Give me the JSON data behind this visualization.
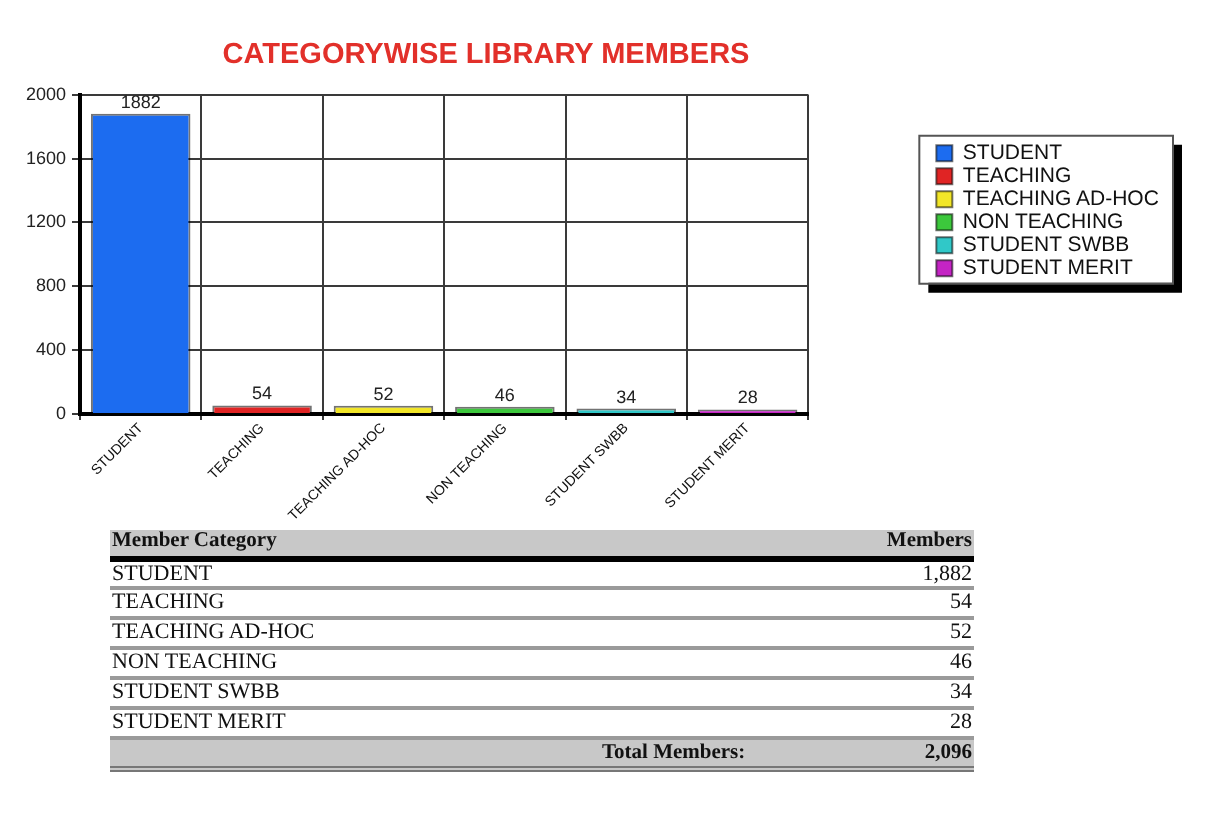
{
  "chart_data": {
    "type": "bar",
    "title": "CATEGORYWISE LIBRARY MEMBERS",
    "categories": [
      "STUDENT",
      "TEACHING",
      "TEACHING AD-HOC",
      "NON TEACHING",
      "STUDENT SWBB",
      "STUDENT MERIT"
    ],
    "series": [
      {
        "name": "STUDENT",
        "color": "#1c6cf0",
        "values": [
          1882,
          null,
          null,
          null,
          null,
          null
        ]
      },
      {
        "name": "TEACHING",
        "color": "#e02424",
        "values": [
          null,
          54,
          null,
          null,
          null,
          null
        ]
      },
      {
        "name": "TEACHING AD-HOC",
        "color": "#f2e628",
        "values": [
          null,
          null,
          52,
          null,
          null,
          null
        ]
      },
      {
        "name": "NON TEACHING",
        "color": "#3cc83c",
        "values": [
          null,
          null,
          null,
          46,
          null,
          null
        ]
      },
      {
        "name": "STUDENT SWBB",
        "color": "#30c8c8",
        "values": [
          null,
          null,
          null,
          null,
          34,
          null
        ]
      },
      {
        "name": "STUDENT MERIT",
        "color": "#c424c4",
        "values": [
          null,
          null,
          null,
          null,
          null,
          28
        ]
      }
    ],
    "ylim": [
      0,
      2000
    ],
    "yticks": [
      0,
      400,
      800,
      1200,
      1600,
      2000
    ],
    "grid": true,
    "legend": "top right",
    "data_labels": true,
    "annotations": [
      "Member Category",
      "Members",
      "1,882",
      "54",
      "52",
      "46",
      "34",
      "28",
      "Total Members:",
      "2,096"
    ]
  }
}
